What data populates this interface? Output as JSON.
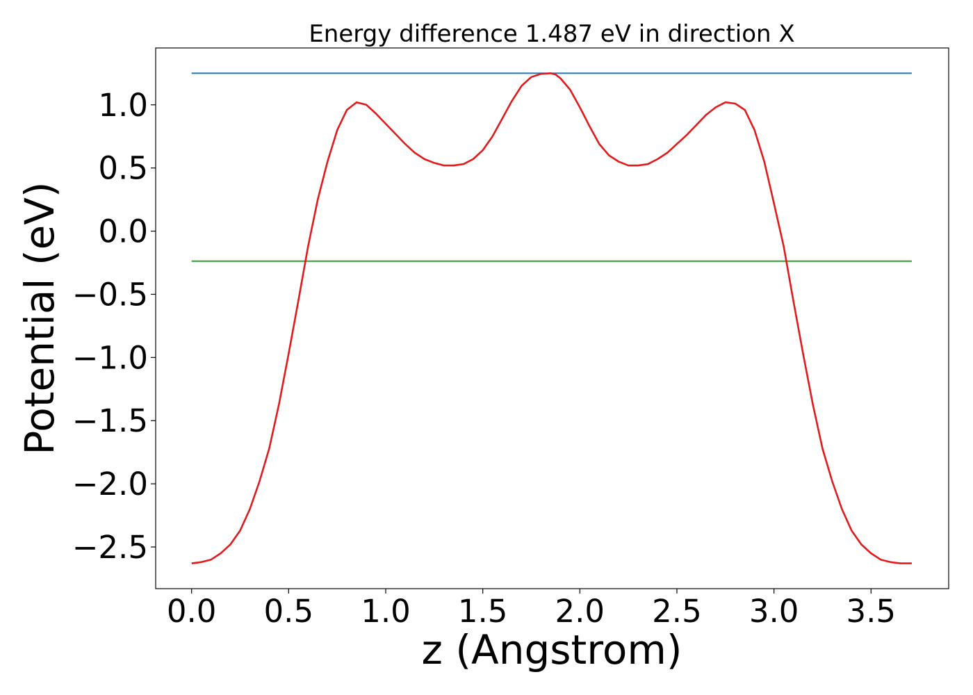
{
  "chart_data": {
    "type": "line",
    "title": "Energy difference 1.487 eV in direction X",
    "xlabel": "z (Angstrom)",
    "ylabel": "Potential (eV)",
    "xlim": [
      -0.185,
      3.9
    ],
    "ylim": [
      -2.83,
      1.45
    ],
    "xticks": [
      0.0,
      0.5,
      1.0,
      1.5,
      2.0,
      2.5,
      3.0,
      3.5
    ],
    "xtick_labels": [
      "0.0",
      "0.5",
      "1.0",
      "1.5",
      "2.0",
      "2.5",
      "3.0",
      "3.5"
    ],
    "yticks": [
      -2.5,
      -2.0,
      -1.5,
      -1.0,
      -0.5,
      0.0,
      0.5,
      1.0
    ],
    "ytick_labels": [
      "−2.5",
      "−2.0",
      "−1.5",
      "−1.0",
      "−0.5",
      "0.0",
      "0.5",
      "1.0"
    ],
    "grid": false,
    "series": [
      {
        "color": "#1f77b4",
        "x": [
          0.0,
          3.71
        ],
        "y": [
          1.25,
          1.25
        ]
      },
      {
        "color": "#2ca02c",
        "x": [
          0.0,
          3.71
        ],
        "y": [
          -0.237,
          -0.237
        ]
      },
      {
        "color": "#e31a1c",
        "x": [
          0.0,
          0.05,
          0.1,
          0.15,
          0.2,
          0.25,
          0.3,
          0.35,
          0.4,
          0.45,
          0.5,
          0.55,
          0.6,
          0.65,
          0.7,
          0.75,
          0.8,
          0.85,
          0.9,
          0.95,
          1.0,
          1.05,
          1.1,
          1.15,
          1.2,
          1.25,
          1.3,
          1.35,
          1.4,
          1.45,
          1.5,
          1.55,
          1.6,
          1.65,
          1.7,
          1.75,
          1.8,
          1.85,
          1.875,
          1.9,
          1.95,
          2.0,
          2.05,
          2.1,
          2.15,
          2.2,
          2.25,
          2.3,
          2.35,
          2.4,
          2.45,
          2.5,
          2.55,
          2.6,
          2.65,
          2.7,
          2.75,
          2.8,
          2.85,
          2.9,
          2.95,
          3.0,
          3.05,
          3.1,
          3.15,
          3.2,
          3.25,
          3.3,
          3.35,
          3.4,
          3.45,
          3.5,
          3.55,
          3.6,
          3.65,
          3.71
        ],
        "y": [
          -2.63,
          -2.62,
          -2.6,
          -2.55,
          -2.48,
          -2.37,
          -2.2,
          -1.98,
          -1.72,
          -1.37,
          -0.97,
          -0.55,
          -0.12,
          0.25,
          0.55,
          0.8,
          0.96,
          1.02,
          1.0,
          0.93,
          0.85,
          0.77,
          0.69,
          0.62,
          0.57,
          0.54,
          0.52,
          0.52,
          0.53,
          0.57,
          0.64,
          0.75,
          0.89,
          1.03,
          1.15,
          1.22,
          1.245,
          1.25,
          1.24,
          1.21,
          1.12,
          0.98,
          0.83,
          0.69,
          0.6,
          0.55,
          0.52,
          0.52,
          0.53,
          0.57,
          0.62,
          0.69,
          0.76,
          0.84,
          0.92,
          0.98,
          1.02,
          1.01,
          0.96,
          0.8,
          0.55,
          0.22,
          -0.12,
          -0.55,
          -0.97,
          -1.37,
          -1.72,
          -1.98,
          -2.2,
          -2.37,
          -2.48,
          -2.55,
          -2.6,
          -2.62,
          -2.63,
          -2.63
        ]
      }
    ]
  }
}
